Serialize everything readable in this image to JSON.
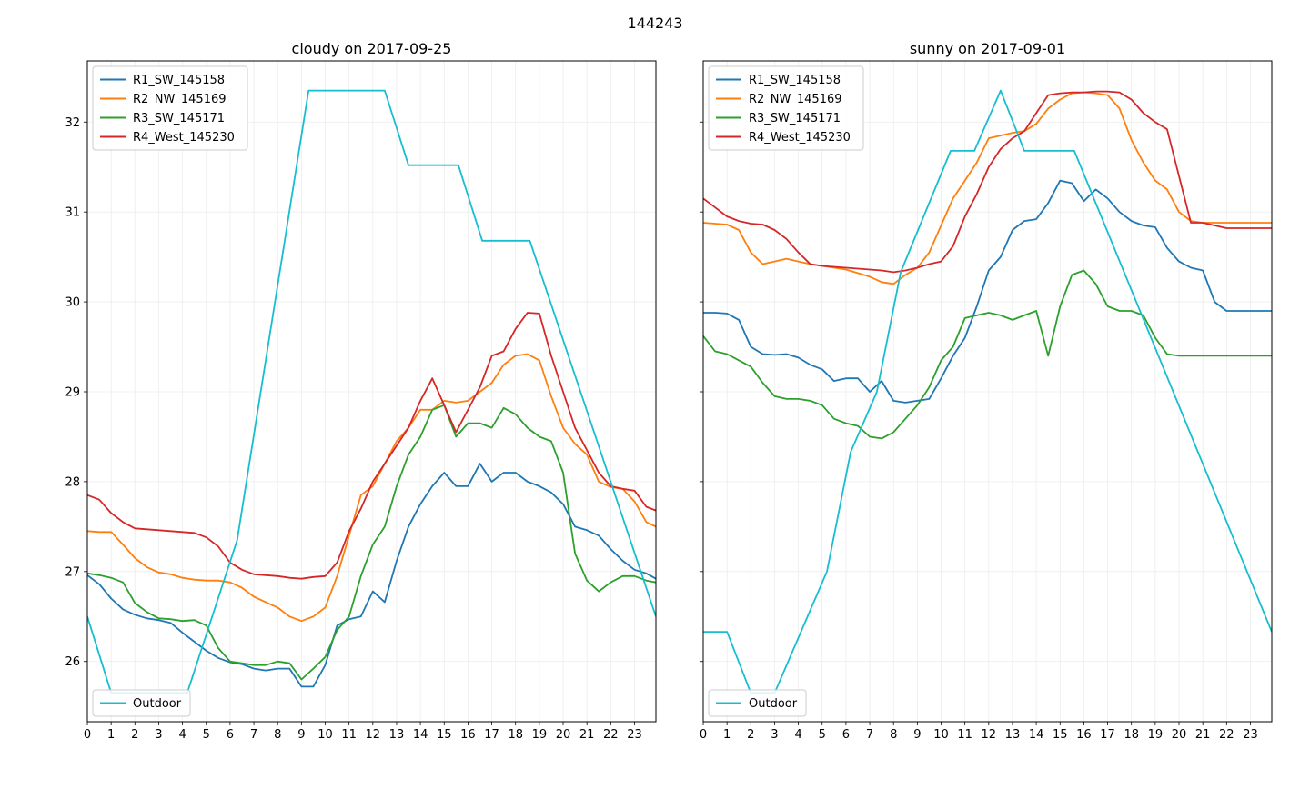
{
  "figure": {
    "suptitle": "144243"
  },
  "chart_data": [
    {
      "type": "line",
      "title": "cloudy on 2017-09-25",
      "xlabel": "",
      "ylabel": "",
      "xlim": [
        0,
        23.9
      ],
      "ylim": [
        25.33,
        32.68
      ],
      "xticks": [
        0,
        1,
        2,
        3,
        4,
        5,
        6,
        7,
        8,
        9,
        10,
        11,
        12,
        13,
        14,
        15,
        16,
        17,
        18,
        19,
        20,
        21,
        22,
        23
      ],
      "yticks": [
        26,
        27,
        28,
        29,
        30,
        31,
        32
      ],
      "grid": true,
      "legends": [
        {
          "position": "top-left",
          "entries": [
            "R1_SW_145158",
            "R2_NW_145169",
            "R3_SW_145171",
            "R4_West_145230"
          ]
        },
        {
          "position": "bottom-left",
          "entries": [
            "Outdoor"
          ]
        }
      ],
      "series": [
        {
          "name": "R1_SW_145158",
          "color": "#1f77b4",
          "x": [
            0,
            0.5,
            1,
            1.5,
            2,
            2.5,
            3,
            3.5,
            4,
            4.5,
            5,
            5.5,
            6,
            6.5,
            7,
            7.5,
            8,
            8.5,
            9,
            9.5,
            10,
            10.5,
            11,
            11.5,
            12,
            12.5,
            13,
            13.5,
            14,
            14.5,
            15,
            15.5,
            16,
            16.5,
            17,
            17.5,
            18,
            18.5,
            19,
            19.5,
            20,
            20.5,
            21,
            21.5,
            22,
            22.5,
            23,
            23.5,
            23.9
          ],
          "y": [
            26.96,
            26.86,
            26.7,
            26.58,
            26.52,
            26.48,
            26.46,
            26.43,
            26.32,
            26.22,
            26.12,
            26.04,
            25.99,
            25.97,
            25.92,
            25.9,
            25.92,
            25.92,
            25.72,
            25.72,
            25.96,
            26.4,
            26.47,
            26.5,
            26.78,
            26.66,
            27.12,
            27.5,
            27.75,
            27.95,
            28.1,
            27.95,
            27.95,
            28.2,
            28.0,
            28.1,
            28.1,
            28.0,
            27.95,
            27.88,
            27.75,
            27.5,
            27.46,
            27.4,
            27.25,
            27.12,
            27.02,
            26.98,
            26.92
          ]
        },
        {
          "name": "R2_NW_145169",
          "color": "#ff7f0e",
          "x": [
            0,
            0.5,
            1,
            1.5,
            2,
            2.5,
            3,
            3.5,
            4,
            4.5,
            5,
            5.5,
            6,
            6.5,
            7,
            7.5,
            8,
            8.5,
            9,
            9.5,
            10,
            10.5,
            11,
            11.5,
            12,
            12.5,
            13,
            13.5,
            14,
            14.5,
            15,
            15.5,
            16,
            16.5,
            17,
            17.5,
            18,
            18.5,
            19,
            19.5,
            20,
            20.5,
            21,
            21.5,
            22,
            22.5,
            23,
            23.5,
            23.9
          ],
          "y": [
            27.45,
            27.44,
            27.44,
            27.3,
            27.15,
            27.05,
            26.99,
            26.97,
            26.93,
            26.91,
            26.9,
            26.9,
            26.88,
            26.82,
            26.72,
            26.66,
            26.6,
            26.5,
            26.45,
            26.5,
            26.6,
            26.95,
            27.4,
            27.85,
            27.95,
            28.2,
            28.45,
            28.6,
            28.8,
            28.8,
            28.9,
            28.88,
            28.9,
            29.0,
            29.1,
            29.3,
            29.4,
            29.42,
            29.35,
            28.95,
            28.6,
            28.42,
            28.3,
            28.0,
            27.94,
            27.92,
            27.78,
            27.55,
            27.5
          ]
        },
        {
          "name": "R3_SW_145171",
          "color": "#2ca02c",
          "x": [
            0,
            0.5,
            1,
            1.5,
            2,
            2.5,
            3,
            3.5,
            4,
            4.5,
            5,
            5.5,
            6,
            6.5,
            7,
            7.5,
            8,
            8.5,
            9,
            9.5,
            10,
            10.5,
            11,
            11.5,
            12,
            12.5,
            13,
            13.5,
            14,
            14.5,
            15,
            15.5,
            16,
            16.5,
            17,
            17.5,
            18,
            18.5,
            19,
            19.5,
            20,
            20.5,
            21,
            21.5,
            22,
            22.5,
            23,
            23.5,
            23.9
          ],
          "y": [
            26.98,
            26.96,
            26.93,
            26.88,
            26.65,
            26.55,
            26.48,
            26.47,
            26.45,
            26.46,
            26.4,
            26.15,
            26.0,
            25.98,
            25.96,
            25.96,
            26.0,
            25.98,
            25.8,
            25.92,
            26.05,
            26.35,
            26.5,
            26.95,
            27.3,
            27.5,
            27.95,
            28.3,
            28.5,
            28.8,
            28.85,
            28.5,
            28.65,
            28.65,
            28.6,
            28.82,
            28.75,
            28.6,
            28.5,
            28.45,
            28.1,
            27.2,
            26.9,
            26.78,
            26.88,
            26.95,
            26.95,
            26.9,
            26.88
          ]
        },
        {
          "name": "R4_West_145230",
          "color": "#d62728",
          "x": [
            0,
            0.5,
            1,
            1.5,
            2,
            2.5,
            3,
            3.5,
            4,
            4.5,
            5,
            5.5,
            6,
            6.5,
            7,
            7.5,
            8,
            8.5,
            9,
            9.5,
            10,
            10.5,
            11,
            11.5,
            12,
            12.5,
            13,
            13.5,
            14,
            14.5,
            15,
            15.5,
            16,
            16.5,
            17,
            17.5,
            18,
            18.5,
            19,
            19.5,
            20,
            20.5,
            21,
            21.5,
            22,
            22.5,
            23,
            23.5,
            23.9
          ],
          "y": [
            27.85,
            27.8,
            27.65,
            27.55,
            27.48,
            27.47,
            27.46,
            27.45,
            27.44,
            27.43,
            27.38,
            27.28,
            27.1,
            27.02,
            26.97,
            26.96,
            26.95,
            26.93,
            26.92,
            26.94,
            26.95,
            27.1,
            27.45,
            27.7,
            28.0,
            28.2,
            28.4,
            28.6,
            28.9,
            29.15,
            28.85,
            28.55,
            28.8,
            29.05,
            29.4,
            29.45,
            29.7,
            29.88,
            29.87,
            29.4,
            29.0,
            28.6,
            28.35,
            28.1,
            27.95,
            27.92,
            27.9,
            27.72,
            27.68
          ]
        },
        {
          "name": "Outdoor",
          "color": "#17becf",
          "x": [
            0,
            1,
            4.2,
            6.3,
            9.3,
            12.5,
            13.5,
            15.6,
            16.6,
            18.6,
            23.9
          ],
          "y": [
            26.5,
            25.65,
            25.65,
            27.35,
            32.35,
            32.35,
            31.52,
            31.52,
            30.68,
            30.68,
            26.5
          ]
        }
      ]
    },
    {
      "type": "line",
      "title": "sunny on 2017-09-01",
      "xlabel": "",
      "ylabel": "",
      "xlim": [
        0,
        23.9
      ],
      "ylim": [
        25.33,
        32.68
      ],
      "xticks": [
        0,
        1,
        2,
        3,
        4,
        5,
        6,
        7,
        8,
        9,
        10,
        11,
        12,
        13,
        14,
        15,
        16,
        17,
        18,
        19,
        20,
        21,
        22,
        23
      ],
      "yticks": [
        26,
        27,
        28,
        29,
        30,
        31,
        32
      ],
      "grid": true,
      "legends": [
        {
          "position": "top-left",
          "entries": [
            "R1_SW_145158",
            "R2_NW_145169",
            "R3_SW_145171",
            "R4_West_145230"
          ]
        },
        {
          "position": "bottom-left",
          "entries": [
            "Outdoor"
          ]
        }
      ],
      "series": [
        {
          "name": "R1_SW_145158",
          "color": "#1f77b4",
          "x": [
            0,
            0.5,
            1,
            1.5,
            2,
            2.5,
            3,
            3.5,
            4,
            4.5,
            5,
            5.5,
            6,
            6.5,
            7,
            7.5,
            8,
            8.5,
            9,
            9.5,
            10,
            10.5,
            11,
            11.5,
            12,
            12.5,
            13,
            13.5,
            14,
            14.5,
            15,
            15.5,
            16,
            16.5,
            17,
            17.5,
            18,
            18.5,
            19,
            19.5,
            20,
            20.5,
            21,
            21.5,
            22,
            22.5,
            23,
            23.5,
            23.9
          ],
          "y": [
            29.88,
            29.88,
            29.87,
            29.8,
            29.5,
            29.42,
            29.41,
            29.42,
            29.38,
            29.3,
            29.25,
            29.12,
            29.15,
            29.15,
            29.0,
            29.12,
            28.9,
            28.88,
            28.9,
            28.92,
            29.15,
            29.4,
            29.6,
            29.95,
            30.35,
            30.5,
            30.8,
            30.9,
            30.92,
            31.1,
            31.35,
            31.32,
            31.12,
            31.25,
            31.15,
            31.0,
            30.9,
            30.85,
            30.83,
            30.6,
            30.45,
            30.38,
            30.35,
            30.0,
            29.9,
            29.9,
            29.9,
            29.9,
            29.9
          ]
        },
        {
          "name": "R2_NW_145169",
          "color": "#ff7f0e",
          "x": [
            0,
            0.5,
            1,
            1.5,
            2,
            2.5,
            3,
            3.5,
            4,
            4.5,
            5,
            5.5,
            6,
            6.5,
            7,
            7.5,
            8,
            8.5,
            9,
            9.5,
            10,
            10.5,
            11,
            11.5,
            12,
            12.5,
            13,
            13.5,
            14,
            14.5,
            15,
            15.5,
            16,
            16.5,
            17,
            17.5,
            18,
            18.5,
            19,
            19.5,
            20,
            20.5,
            21,
            21.5,
            22,
            22.5,
            23,
            23.5,
            23.9
          ],
          "y": [
            30.88,
            30.87,
            30.86,
            30.8,
            30.55,
            30.42,
            30.45,
            30.48,
            30.45,
            30.42,
            30.4,
            30.38,
            30.36,
            30.32,
            30.28,
            30.22,
            30.2,
            30.3,
            30.38,
            30.55,
            30.85,
            31.15,
            31.35,
            31.55,
            31.82,
            31.85,
            31.88,
            31.9,
            31.98,
            32.15,
            32.25,
            32.32,
            32.33,
            32.32,
            32.3,
            32.15,
            31.8,
            31.55,
            31.35,
            31.25,
            31.0,
            30.9,
            30.88,
            30.88,
            30.88,
            30.88,
            30.88,
            30.88,
            30.88
          ]
        },
        {
          "name": "R3_SW_145171",
          "color": "#2ca02c",
          "x": [
            0,
            0.5,
            1,
            1.5,
            2,
            2.5,
            3,
            3.5,
            4,
            4.5,
            5,
            5.5,
            6,
            6.5,
            7,
            7.5,
            8,
            8.5,
            9,
            9.5,
            10,
            10.5,
            11,
            11.5,
            12,
            12.5,
            13,
            13.5,
            14,
            14.5,
            15,
            15.5,
            16,
            16.5,
            17,
            17.5,
            18,
            18.5,
            19,
            19.5,
            20,
            20.5,
            21,
            21.5,
            22,
            22.5,
            23,
            23.5,
            23.9
          ],
          "y": [
            29.62,
            29.45,
            29.42,
            29.35,
            29.28,
            29.1,
            28.95,
            28.92,
            28.92,
            28.9,
            28.85,
            28.7,
            28.65,
            28.62,
            28.5,
            28.48,
            28.55,
            28.7,
            28.85,
            29.05,
            29.35,
            29.5,
            29.82,
            29.85,
            29.88,
            29.85,
            29.8,
            29.85,
            29.9,
            29.4,
            29.95,
            30.3,
            30.35,
            30.2,
            29.95,
            29.9,
            29.9,
            29.85,
            29.6,
            29.42,
            29.4,
            29.4,
            29.4,
            29.4,
            29.4,
            29.4,
            29.4,
            29.4,
            29.4
          ]
        },
        {
          "name": "R4_West_145230",
          "color": "#d62728",
          "x": [
            0,
            0.5,
            1,
            1.5,
            2,
            2.5,
            3,
            3.5,
            4,
            4.5,
            5,
            5.5,
            6,
            6.5,
            7,
            7.5,
            8,
            8.5,
            9,
            9.5,
            10,
            10.5,
            11,
            11.5,
            12,
            12.5,
            13,
            13.5,
            14,
            14.5,
            15,
            15.5,
            16,
            16.5,
            17,
            17.5,
            18,
            18.5,
            19,
            19.5,
            20,
            20.5,
            21,
            21.5,
            22,
            22.5,
            23,
            23.5,
            23.9
          ],
          "y": [
            31.15,
            31.05,
            30.95,
            30.9,
            30.87,
            30.86,
            30.8,
            30.7,
            30.55,
            30.42,
            30.4,
            30.39,
            30.38,
            30.37,
            30.36,
            30.35,
            30.33,
            30.35,
            30.38,
            30.42,
            30.45,
            30.62,
            30.95,
            31.2,
            31.5,
            31.7,
            31.82,
            31.9,
            32.1,
            32.3,
            32.32,
            32.33,
            32.33,
            32.34,
            32.34,
            32.33,
            32.25,
            32.1,
            32.0,
            31.92,
            31.4,
            30.88,
            30.88,
            30.85,
            30.82,
            30.82,
            30.82,
            30.82,
            30.82
          ]
        },
        {
          "name": "Outdoor",
          "color": "#17becf",
          "x": [
            0,
            1,
            2,
            3,
            5.2,
            6.2,
            7.3,
            8.3,
            10.4,
            11.4,
            12.5,
            13.5,
            15.6,
            23.9
          ],
          "y": [
            26.33,
            26.33,
            25.65,
            25.65,
            27.0,
            28.33,
            29.0,
            30.33,
            31.68,
            31.68,
            32.35,
            31.68,
            31.68,
            26.33
          ]
        }
      ]
    }
  ]
}
